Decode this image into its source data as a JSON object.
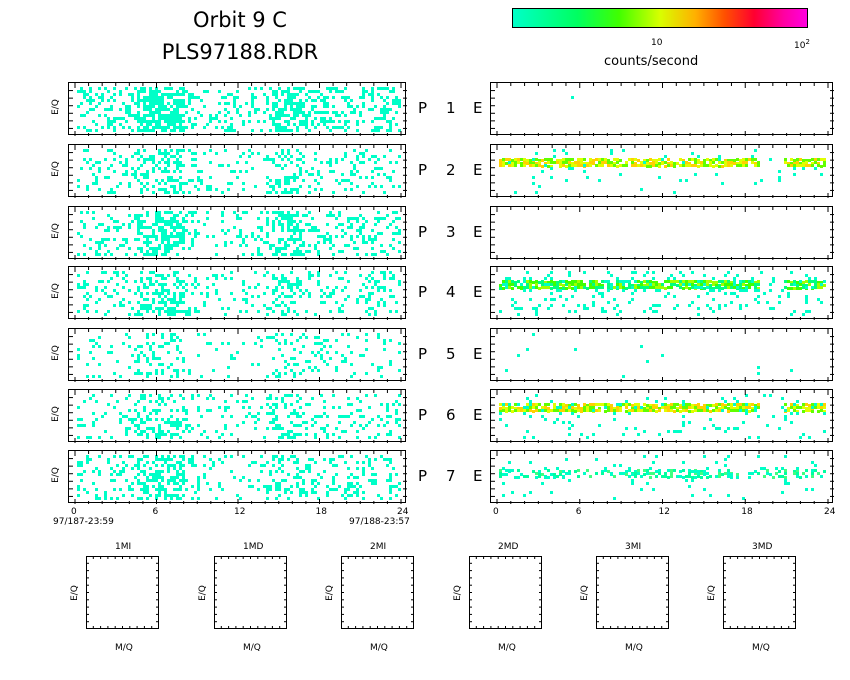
{
  "header": {
    "title_line1": "Orbit 9 C",
    "title_line2": "PLS97188.RDR"
  },
  "colorbar": {
    "tick_10": "10",
    "tick_100_base": "10",
    "tick_100_exp": "2",
    "label": "counts/second",
    "colors": [
      "#00ffc8",
      "#00ff60",
      "#40ff00",
      "#d8ff00",
      "#ffb000",
      "#ff5000",
      "#ff0030",
      "#ff00a0",
      "#ff00e0"
    ]
  },
  "axis": {
    "ylabel": "E/Q",
    "xticks": [
      "0",
      "6",
      "12",
      "18",
      "24"
    ],
    "start_time": "97/187-23:59",
    "end_time": "97/188-23:57"
  },
  "rows": [
    {
      "p": "P",
      "n": "1",
      "e": "E"
    },
    {
      "p": "P",
      "n": "2",
      "e": "E"
    },
    {
      "p": "P",
      "n": "3",
      "e": "E"
    },
    {
      "p": "P",
      "n": "4",
      "e": "E"
    },
    {
      "p": "P",
      "n": "5",
      "e": "E"
    },
    {
      "p": "P",
      "n": "6",
      "e": "E"
    },
    {
      "p": "P",
      "n": "7",
      "e": "E"
    }
  ],
  "mass_panels": {
    "labels": [
      "1MI",
      "1MD",
      "2MI",
      "2MD",
      "3MI",
      "3MD"
    ],
    "ylabel": "E/Q",
    "xlabel": "M/Q"
  },
  "chart_data": {
    "type": "heatmap",
    "x_range": [
      0,
      24
    ],
    "left_density": [
      0.32,
      0.18,
      0.25,
      0.2,
      0.12,
      0.18,
      0.22
    ],
    "right_bands": [
      {
        "band": null,
        "scatter": 0.0
      },
      {
        "band": "yellow",
        "scatter": 0.03
      },
      {
        "band": null,
        "scatter": 0.0
      },
      {
        "band": "green",
        "scatter": 0.12
      },
      {
        "band": null,
        "scatter": 0.01
      },
      {
        "band": "yellow",
        "scatter": 0.06
      },
      {
        "band": "cyan",
        "scatter": 0.05
      }
    ]
  }
}
